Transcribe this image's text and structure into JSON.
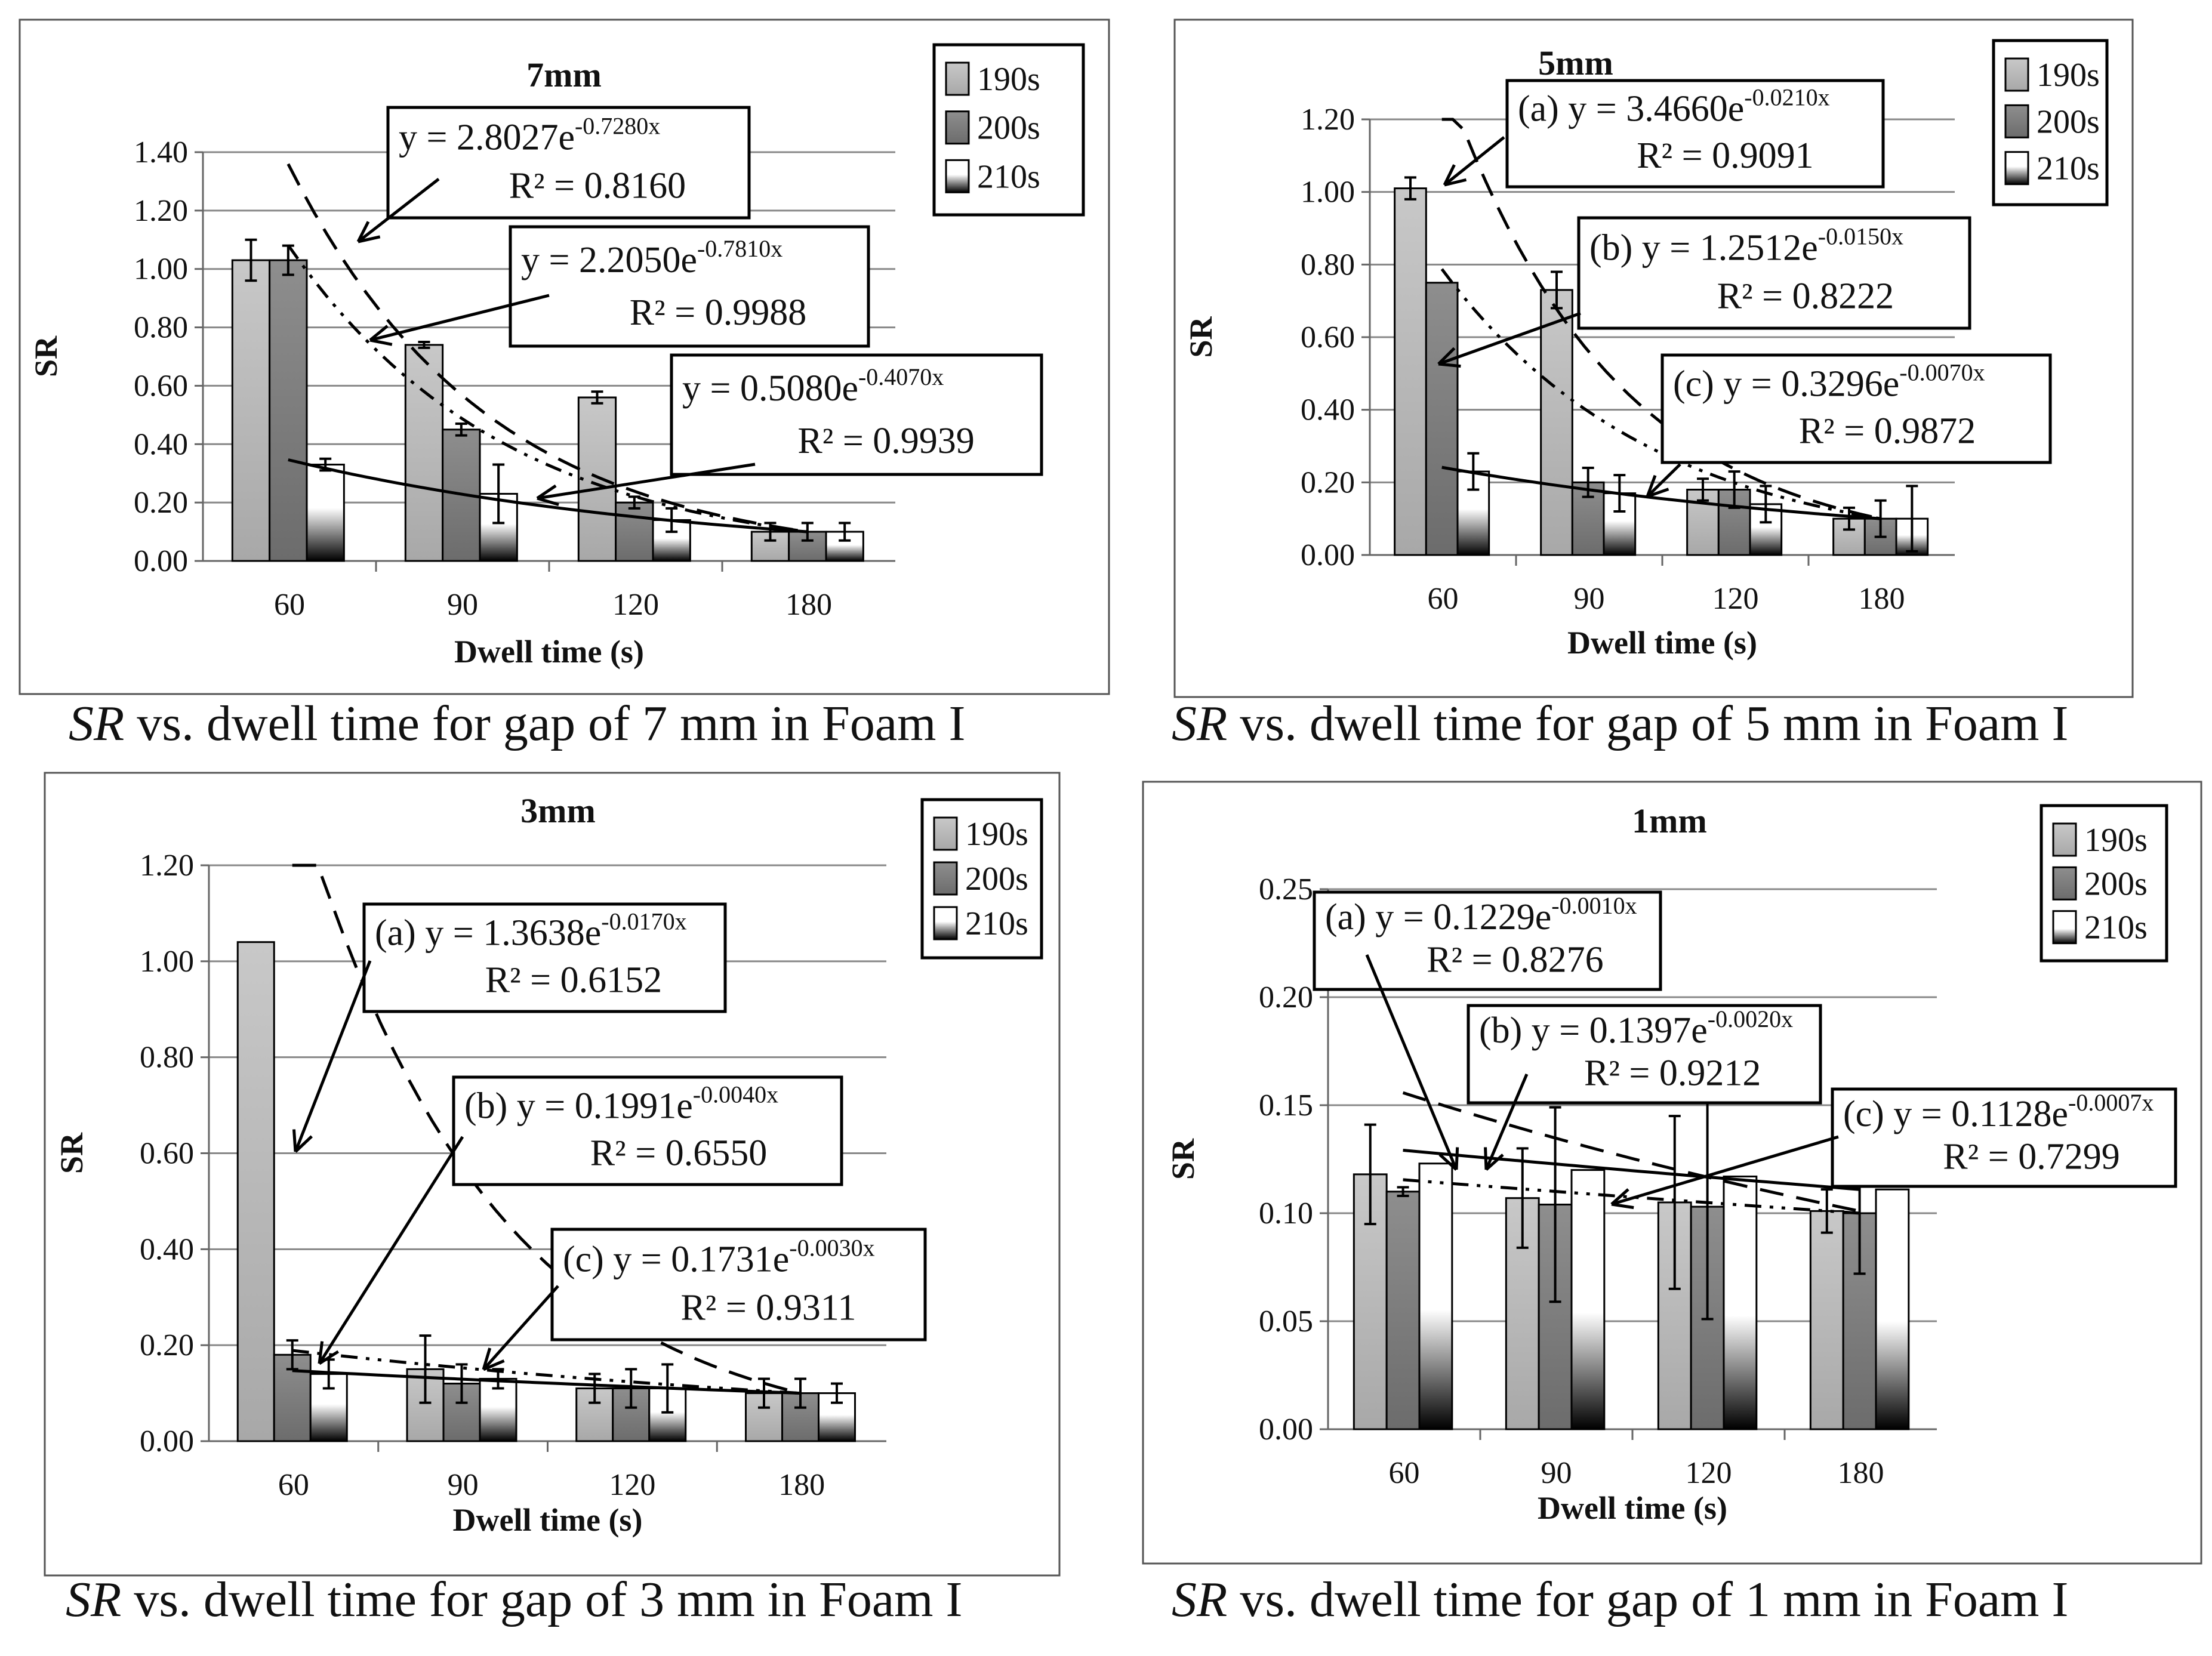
{
  "chart_data": [
    {
      "type": "bar",
      "title": "7mm",
      "caption_var": "SR",
      "caption_rest": " vs. dwell time for gap of 7 mm in Foam I",
      "xlabel": "Dwell time (s)",
      "ylabel": "SR",
      "categories": [
        "60",
        "90",
        "120",
        "180"
      ],
      "ylim": [
        0,
        1.4
      ],
      "yticks": [
        "0.00",
        "0.20",
        "0.40",
        "0.60",
        "0.80",
        "1.00",
        "1.20",
        "1.40"
      ],
      "legend_position": "top-right",
      "series": [
        {
          "name": "190s",
          "values": [
            1.03,
            0.74,
            0.56,
            0.1
          ],
          "errors": [
            0.07,
            0.01,
            0.02,
            0.03
          ]
        },
        {
          "name": "200s",
          "values": [
            1.03,
            0.45,
            0.2,
            0.1
          ],
          "errors": [
            0.05,
            0.02,
            0.02,
            0.03
          ]
        },
        {
          "name": "210s",
          "values": [
            0.33,
            0.23,
            0.14,
            0.1
          ],
          "errors": [
            0.02,
            0.1,
            0.04,
            0.03
          ]
        }
      ],
      "trendlines": [
        {
          "eq": "y = 2.8027e",
          "exp": "-0.7280x",
          "r2": "R² = 0.8160"
        },
        {
          "eq": "y = 2.2050e",
          "exp": "-0.7810x",
          "r2": "R² = 0.9988"
        },
        {
          "eq": "y = 0.5080e",
          "exp": "-0.4070x",
          "r2": "R² = 0.9939"
        }
      ]
    },
    {
      "type": "bar",
      "title": "5mm",
      "caption_var": "SR",
      "caption_rest": " vs. dwell time for gap of 5 mm in Foam I",
      "xlabel": "Dwell time (s)",
      "ylabel": "SR",
      "categories": [
        "60",
        "90",
        "120",
        "180"
      ],
      "ylim": [
        0,
        1.2
      ],
      "yticks": [
        "0.00",
        "0.20",
        "0.40",
        "0.60",
        "0.80",
        "1.00",
        "1.20"
      ],
      "legend_position": "top-right",
      "series": [
        {
          "name": "190s",
          "values": [
            1.01,
            0.73,
            0.18,
            0.1
          ],
          "errors": [
            0.03,
            0.05,
            0.03,
            0.03
          ]
        },
        {
          "name": "200s",
          "values": [
            0.75,
            0.2,
            0.18,
            0.1
          ],
          "errors": [
            0.0,
            0.04,
            0.05,
            0.05
          ]
        },
        {
          "name": "210s",
          "values": [
            0.23,
            0.17,
            0.14,
            0.1
          ],
          "errors": [
            0.05,
            0.05,
            0.05,
            0.09
          ]
        }
      ],
      "trendlines": [
        {
          "eq": "(a) y = 3.4660e",
          "exp": "-0.0210x",
          "r2": "R² = 0.9091"
        },
        {
          "eq": "(b) y = 1.2512e",
          "exp": "-0.0150x",
          "r2": "R² = 0.8222"
        },
        {
          "eq": "(c) y = 0.3296e",
          "exp": "-0.0070x",
          "r2": "R² = 0.9872"
        }
      ]
    },
    {
      "type": "bar",
      "title": "3mm",
      "caption_var": "SR",
      "caption_rest": " vs. dwell time for gap of 3 mm in Foam I",
      "xlabel": "Dwell time (s)",
      "ylabel": "SR",
      "categories": [
        "60",
        "90",
        "120",
        "180"
      ],
      "ylim": [
        0,
        1.2
      ],
      "yticks": [
        "0.00",
        "0.20",
        "0.40",
        "0.60",
        "0.80",
        "1.00",
        "1.20"
      ],
      "legend_position": "top-right",
      "series": [
        {
          "name": "190s",
          "values": [
            1.04,
            0.15,
            0.11,
            0.1
          ],
          "errors": [
            0.0,
            0.07,
            0.03,
            0.03
          ]
        },
        {
          "name": "200s",
          "values": [
            0.18,
            0.12,
            0.11,
            0.1
          ],
          "errors": [
            0.03,
            0.04,
            0.04,
            0.03
          ]
        },
        {
          "name": "210s",
          "values": [
            0.14,
            0.13,
            0.11,
            0.1
          ],
          "errors": [
            0.03,
            0.02,
            0.05,
            0.02
          ]
        }
      ],
      "trendlines": [
        {
          "eq": "(a) y = 1.3638e",
          "exp": "-0.0170x",
          "r2": "R² = 0.6152"
        },
        {
          "eq": "(b) y = 0.1991e",
          "exp": "-0.0040x",
          "r2": "R² = 0.6550"
        },
        {
          "eq": "(c) y = 0.1731e",
          "exp": "-0.0030x",
          "r2": "R² = 0.9311"
        }
      ]
    },
    {
      "type": "bar",
      "title": "1mm",
      "caption_var": "SR",
      "caption_rest": " vs. dwell time for gap of 1 mm in Foam I",
      "xlabel": "Dwell time (s)",
      "ylabel": "SR",
      "categories": [
        "60",
        "90",
        "120",
        "180"
      ],
      "ylim": [
        0,
        0.25
      ],
      "yticks": [
        "0.00",
        "0.05",
        "0.10",
        "0.15",
        "0.20",
        "0.25"
      ],
      "legend_position": "top-right",
      "series": [
        {
          "name": "190s",
          "values": [
            0.118,
            0.107,
            0.105,
            0.101
          ],
          "errors": [
            0.023,
            0.023,
            0.04,
            0.01
          ]
        },
        {
          "name": "200s",
          "values": [
            0.11,
            0.104,
            0.103,
            0.1
          ],
          "errors": [
            0.002,
            0.045,
            0.052,
            0.028
          ]
        },
        {
          "name": "210s",
          "values": [
            0.123,
            0.12,
            0.117,
            0.111
          ],
          "errors": [
            0.0,
            0.0,
            0.0,
            0.0
          ]
        }
      ],
      "trendlines": [
        {
          "eq": "(a) y = 0.1229e",
          "exp": "-0.0010x",
          "r2": "R² = 0.8276"
        },
        {
          "eq": "(b) y = 0.1397e",
          "exp": "-0.0020x",
          "r2": "R² = 0.9212"
        },
        {
          "eq": "(c) y = 0.1128e",
          "exp": "-0.0007x",
          "r2": "R² = 0.7299"
        }
      ]
    }
  ]
}
